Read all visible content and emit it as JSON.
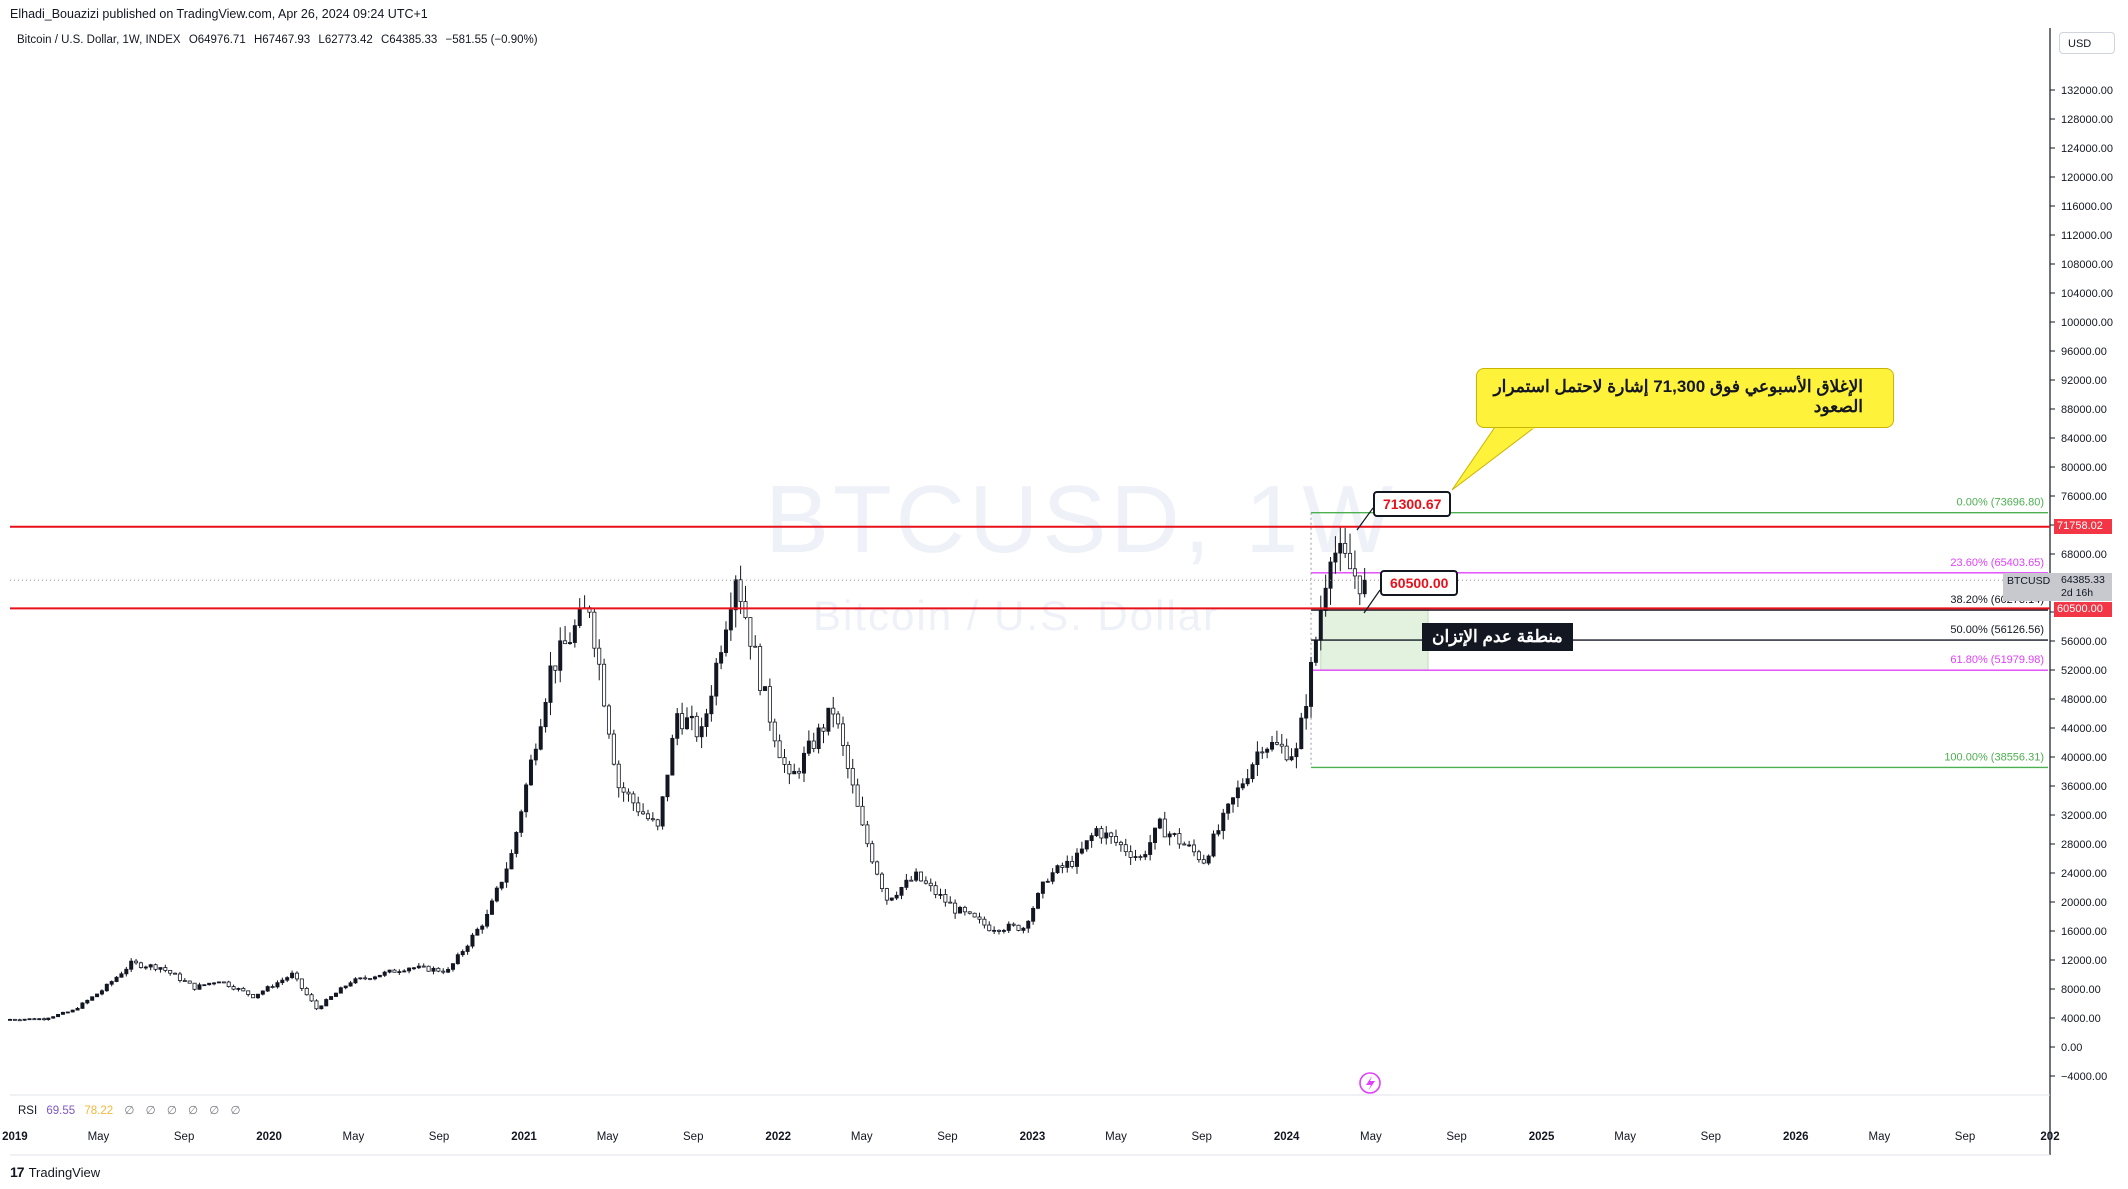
{
  "header": {
    "published": "Elhadi_Bouazizi published on TradingView.com, Apr 26, 2024 09:24 UTC+1",
    "symbol": "Bitcoin / U.S. Dollar, 1W, INDEX",
    "open": "O64976.71",
    "high": "H67467.93",
    "low": "L62773.42",
    "close": "C64385.33",
    "change": "−581.55 (−0.90%)",
    "currency": "USD"
  },
  "watermark": {
    "line1": "BTCUSD, 1W",
    "line2": "Bitcoin / U.S. Dollar"
  },
  "rsi": {
    "label": "RSI",
    "value1": "69.55",
    "value2": "78.22",
    "na_symbols": [
      "∅",
      "∅",
      "∅",
      "∅",
      "∅",
      "∅"
    ]
  },
  "footer": {
    "brand": "TradingView",
    "logo": "17"
  },
  "annotations": {
    "callout_high": "71300.67",
    "callout_low": "60500.00",
    "note": "الإغلاق الأسبوعي فوق 71,300  إشارة لاحتمل استمرار الصعود",
    "zone_label": "منطقة عدم الإتزان"
  },
  "price_tags": {
    "resistance": "71758.02",
    "support": "60500.00",
    "current_symbol": "BTCUSD",
    "current_price": "64385.33",
    "countdown": "2d 16h"
  },
  "colors": {
    "up": "#131722",
    "down": "#ffffff",
    "resistance_line": "#e8101a",
    "fib_green": "#4caf50",
    "fib_magenta": "#e040fb",
    "zone_fill": "#dff1dc",
    "callout_bg": "#fff23b"
  },
  "chart_data": {
    "type": "candlestick",
    "title": "Bitcoin / U.S. Dollar, 1W, INDEX",
    "y_axis": {
      "ticks": [
        "132000.00",
        "128000.00",
        "124000.00",
        "120000.00",
        "116000.00",
        "112000.00",
        "108000.00",
        "104000.00",
        "100000.00",
        "96000.00",
        "92000.00",
        "88000.00",
        "84000.00",
        "80000.00",
        "76000.00",
        "72000.00",
        "68000.00",
        "64000.00",
        "60000.00",
        "56000.00",
        "52000.00",
        "48000.00",
        "44000.00",
        "40000.00",
        "36000.00",
        "32000.00",
        "28000.00",
        "24000.00",
        "20000.00",
        "16000.00",
        "12000.00",
        "8000.00",
        "4000.00",
        "0.00",
        "−4000.00"
      ],
      "range": [
        -4000,
        136000
      ]
    },
    "x_axis": {
      "ticks": [
        {
          "label": "2019",
          "date": "2019-01-01",
          "bold": true
        },
        {
          "label": "May",
          "date": "2019-05-01"
        },
        {
          "label": "Sep",
          "date": "2019-09-01"
        },
        {
          "label": "2020",
          "date": "2020-01-01",
          "bold": true
        },
        {
          "label": "May",
          "date": "2020-05-01"
        },
        {
          "label": "Sep",
          "date": "2020-09-01"
        },
        {
          "label": "2021",
          "date": "2021-01-01",
          "bold": true
        },
        {
          "label": "May",
          "date": "2021-05-01"
        },
        {
          "label": "Sep",
          "date": "2021-09-01"
        },
        {
          "label": "2022",
          "date": "2022-01-01",
          "bold": true
        },
        {
          "label": "May",
          "date": "2022-05-01"
        },
        {
          "label": "Sep",
          "date": "2022-09-01"
        },
        {
          "label": "2023",
          "date": "2023-01-01",
          "bold": true
        },
        {
          "label": "May",
          "date": "2023-05-01"
        },
        {
          "label": "Sep",
          "date": "2023-09-01"
        },
        {
          "label": "2024",
          "date": "2024-01-01",
          "bold": true
        },
        {
          "label": "May",
          "date": "2024-05-01"
        },
        {
          "label": "Sep",
          "date": "2024-09-01"
        },
        {
          "label": "2025",
          "date": "2025-01-01",
          "bold": true
        },
        {
          "label": "May",
          "date": "2025-05-01"
        },
        {
          "label": "Sep",
          "date": "2025-09-01"
        },
        {
          "label": "2026",
          "date": "2026-01-01",
          "bold": true
        },
        {
          "label": "May",
          "date": "2026-05-01"
        },
        {
          "label": "Sep",
          "date": "2026-09-01"
        },
        {
          "label": "202",
          "date": "2027-01-01",
          "bold": true
        }
      ]
    },
    "anchors": [
      {
        "date": "2018-12-25",
        "price": 3800
      },
      {
        "date": "2019-02-18",
        "price": 3900
      },
      {
        "date": "2019-04-01",
        "price": 5000
      },
      {
        "date": "2019-05-13",
        "price": 7800
      },
      {
        "date": "2019-06-24",
        "price": 11500
      },
      {
        "date": "2019-08-05",
        "price": 11000
      },
      {
        "date": "2019-09-23",
        "price": 8200
      },
      {
        "date": "2019-10-28",
        "price": 9200
      },
      {
        "date": "2019-12-16",
        "price": 7000
      },
      {
        "date": "2020-02-10",
        "price": 10000
      },
      {
        "date": "2020-03-16",
        "price": 5300
      },
      {
        "date": "2020-05-04",
        "price": 9000
      },
      {
        "date": "2020-07-27",
        "price": 11000
      },
      {
        "date": "2020-09-21",
        "price": 10500
      },
      {
        "date": "2020-11-16",
        "price": 18000
      },
      {
        "date": "2020-12-21",
        "price": 26500
      },
      {
        "date": "2021-01-11",
        "price": 36000
      },
      {
        "date": "2021-02-15",
        "price": 52000
      },
      {
        "date": "2021-04-12",
        "price": 61000
      },
      {
        "date": "2021-05-24",
        "price": 36000
      },
      {
        "date": "2021-07-19",
        "price": 30000
      },
      {
        "date": "2021-08-16",
        "price": 46000
      },
      {
        "date": "2021-09-20",
        "price": 43000
      },
      {
        "date": "2021-11-08",
        "price": 65500
      },
      {
        "date": "2021-12-20",
        "price": 48000
      },
      {
        "date": "2022-01-24",
        "price": 36500
      },
      {
        "date": "2022-03-28",
        "price": 46500
      },
      {
        "date": "2022-05-09",
        "price": 30000
      },
      {
        "date": "2022-06-13",
        "price": 20500
      },
      {
        "date": "2022-07-25",
        "price": 23500
      },
      {
        "date": "2022-09-19",
        "price": 19000
      },
      {
        "date": "2022-11-07",
        "price": 16500
      },
      {
        "date": "2022-12-26",
        "price": 16500
      },
      {
        "date": "2023-01-30",
        "price": 23500
      },
      {
        "date": "2023-03-13",
        "price": 26000
      },
      {
        "date": "2023-04-10",
        "price": 30000
      },
      {
        "date": "2023-06-12",
        "price": 26000
      },
      {
        "date": "2023-07-10",
        "price": 30500
      },
      {
        "date": "2023-09-11",
        "price": 25800
      },
      {
        "date": "2023-10-23",
        "price": 34000
      },
      {
        "date": "2023-12-04",
        "price": 42000
      },
      {
        "date": "2024-01-22",
        "price": 40500
      },
      {
        "date": "2024-02-12",
        "price": 52000
      },
      {
        "date": "2024-03-11",
        "price": 69000
      },
      {
        "date": "2024-04-22",
        "price": 64385
      }
    ],
    "horizontal_lines": [
      {
        "price": 71758.02,
        "color": "#e8101a"
      },
      {
        "price": 60500.0,
        "color": "#e8101a"
      }
    ],
    "fib_levels": [
      {
        "label": "0.00% (73696.80)",
        "price": 73696.8,
        "color": "#4caf50"
      },
      {
        "label": "23.60% (65403.65)",
        "price": 65403.65,
        "color": "#e040fb"
      },
      {
        "label": "38.20% (60273.14)",
        "price": 60273.14,
        "color": "#131722"
      },
      {
        "label": "50.00% (56126.56)",
        "price": 56126.56,
        "color": "#131722"
      },
      {
        "label": "61.80% (51979.98)",
        "price": 51979.98,
        "color": "#e040fb"
      },
      {
        "label": "100.00% (38556.31)",
        "price": 38556.31,
        "color": "#4caf50"
      }
    ],
    "imbalance_zone": {
      "from_date": "2024-02-19",
      "to_date": "2024-07-22",
      "top": 60500,
      "bottom": 52000
    },
    "current_price": 64385.33
  }
}
